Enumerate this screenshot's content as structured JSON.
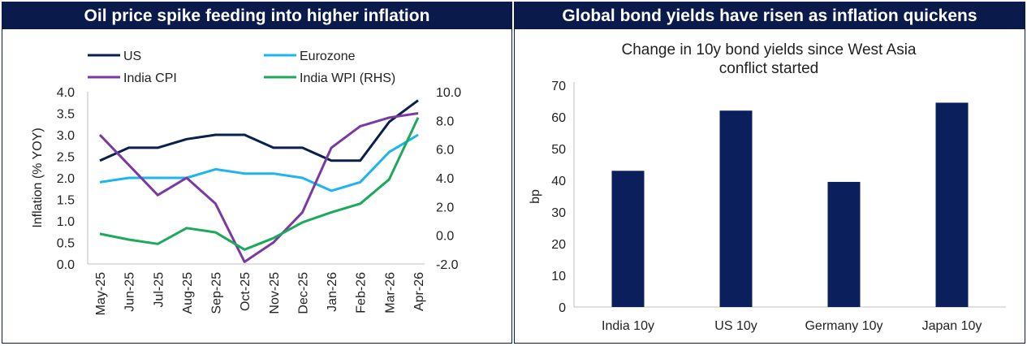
{
  "left_panel": {
    "header": "Oil price spike feeding into higher inflation"
  },
  "right_panel": {
    "header": "Global bond yields have risen as inflation quickens"
  },
  "chart_data": [
    {
      "type": "line",
      "title": "",
      "ylabel": "Inflation (% YOY)",
      "ylim": [
        0.0,
        4.0
      ],
      "y_ticks": [
        "0.0",
        "0.5",
        "1.0",
        "1.5",
        "2.0",
        "2.5",
        "3.0",
        "3.5",
        "4.0"
      ],
      "y2lim": [
        -2.0,
        10.0
      ],
      "y2_ticks": [
        "-2.0",
        "0.0",
        "2.0",
        "4.0",
        "6.0",
        "8.0",
        "10.0"
      ],
      "categories": [
        "May-25",
        "Jun-25",
        "Jul-25",
        "Aug-25",
        "Sep-25",
        "Oct-25",
        "Nov-25",
        "Dec-25",
        "Jan-26",
        "Feb-26",
        "Mar-26",
        "Apr-26"
      ],
      "legend_position": "top",
      "series": [
        {
          "name": "US",
          "axis": "left",
          "color": "#0a1f4e",
          "values": [
            2.4,
            2.7,
            2.7,
            2.9,
            3.0,
            3.0,
            2.7,
            2.7,
            2.4,
            2.4,
            3.3,
            3.8
          ]
        },
        {
          "name": "Eurozone",
          "axis": "left",
          "color": "#1eb4ee",
          "values": [
            1.9,
            2.0,
            2.0,
            2.0,
            2.2,
            2.1,
            2.1,
            2.0,
            1.7,
            1.9,
            2.6,
            3.0
          ]
        },
        {
          "name": "India CPI",
          "axis": "left",
          "color": "#7a3aa4",
          "values": [
            3.0,
            2.3,
            1.6,
            2.0,
            1.4,
            0.05,
            0.5,
            1.2,
            2.7,
            3.2,
            3.4,
            3.5
          ]
        },
        {
          "name": "India WPI (RHS)",
          "axis": "right",
          "color": "#1aaa5a",
          "values": [
            0.1,
            -0.3,
            -0.6,
            0.5,
            0.2,
            -1.0,
            -0.2,
            0.9,
            1.6,
            2.2,
            3.9,
            8.2
          ]
        }
      ]
    },
    {
      "type": "bar",
      "title": "Change in 10y bond yields since West Asia conflict started",
      "title_lines": [
        "Change in 10y bond yields since West Asia",
        "conflict started"
      ],
      "ylabel": "bp",
      "ylim": [
        0,
        70
      ],
      "y_ticks": [
        "0",
        "10",
        "20",
        "30",
        "40",
        "50",
        "60",
        "70"
      ],
      "categories": [
        "India 10y",
        "US 10y",
        "Germany 10y",
        "Japan 10y"
      ],
      "values": [
        43,
        62,
        39.5,
        64.5
      ],
      "color": "#0a1f5c"
    }
  ]
}
